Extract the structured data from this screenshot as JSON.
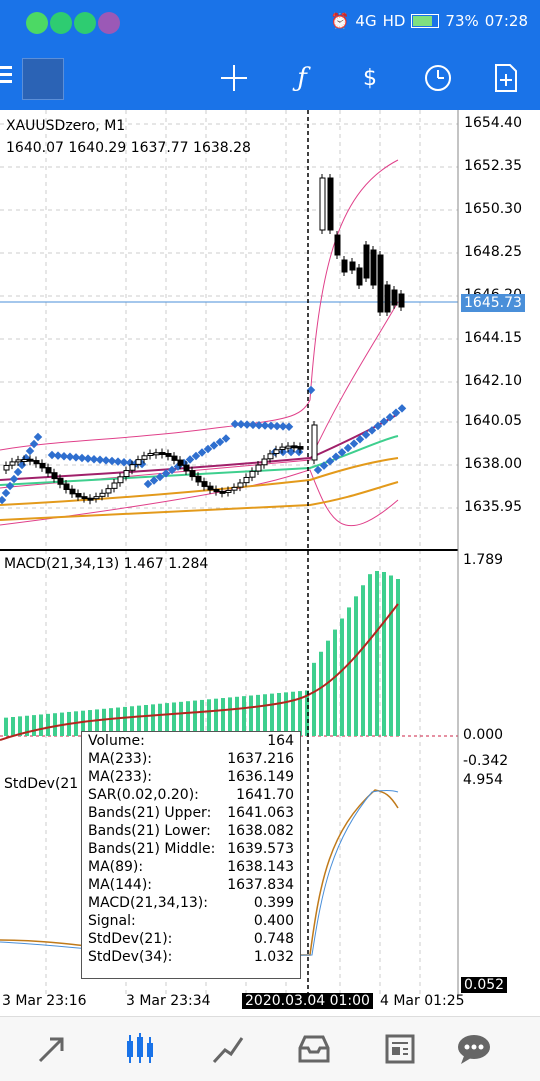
{
  "status": {
    "battery": "73%",
    "time": "07:28",
    "network": "4G",
    "hd": "HD"
  },
  "symbol": "XAUUSDzero, M1",
  "ohlc": "1640.07 1640.29 1637.77 1638.28",
  "price_axis": [
    "1654.40",
    "1652.35",
    "1650.30",
    "1648.25",
    "1646.20",
    "1644.15",
    "1642.10",
    "1640.05",
    "1638.00",
    "1635.95"
  ],
  "current_price": "1645.73",
  "macd": {
    "title": "MACD(21,34,13) 1.467 1.284",
    "top": "1.789",
    "zero": "0.000"
  },
  "stddev": {
    "title": "StdDev(21",
    "v1": "-0.342",
    "v2": "4.954",
    "bottom": "0.052"
  },
  "tooltip": [
    {
      "k": "Volume:",
      "v": "164"
    },
    {
      "k": "MA(233):",
      "v": "1637.216"
    },
    {
      "k": "MA(233):",
      "v": "1636.149"
    },
    {
      "k": "SAR(0.02,0.20):",
      "v": "1641.70"
    },
    {
      "k": "Bands(21) Upper:",
      "v": "1641.063"
    },
    {
      "k": "Bands(21) Lower:",
      "v": "1638.082"
    },
    {
      "k": "Bands(21) Middle:",
      "v": "1639.573"
    },
    {
      "k": "MA(89):",
      "v": "1638.143"
    },
    {
      "k": "MA(144):",
      "v": "1637.834"
    },
    {
      "k": "MACD(21,34,13):",
      "v": "0.399"
    },
    {
      "k": "Signal:",
      "v": "0.400"
    },
    {
      "k": "StdDev(21):",
      "v": "0.748"
    },
    {
      "k": "StdDev(34):",
      "v": "1.032"
    }
  ],
  "time_axis": {
    "t1": "3 Mar 23:16",
    "t2": "3 Mar 23:34",
    "current": "2020.03.04 01:00",
    "t3": "4 Mar 01:25"
  },
  "toolbar_icons": [
    "crosshair-icon",
    "function-icon",
    "chart-dollar-icon",
    "clock-icon",
    "new-order-icon"
  ],
  "tabs": [
    "quotes-icon",
    "chart-icon",
    "trade-icon",
    "history-icon",
    "news-icon",
    "chat-icon"
  ],
  "colors": {
    "accent": "#1a73e8",
    "macd_hist": "#3ecf8e",
    "signal": "#b3261e",
    "ma_orange": "#e39a1b",
    "bands": "#e0408a",
    "sar": "#2f6fcf"
  }
}
